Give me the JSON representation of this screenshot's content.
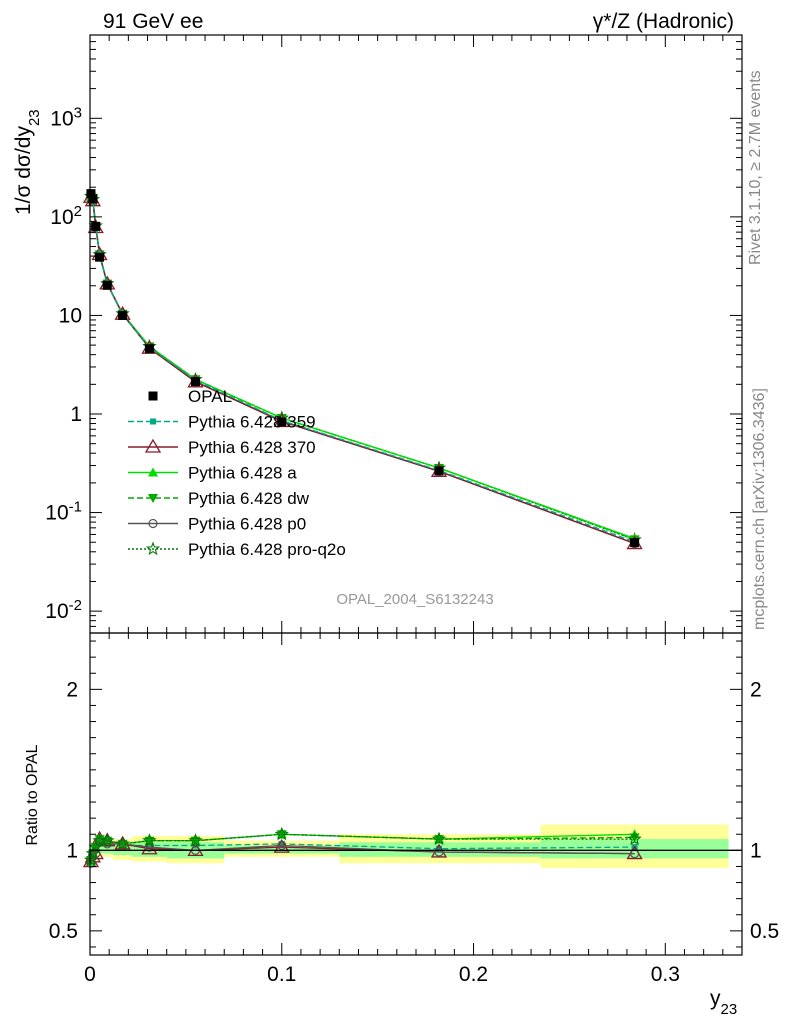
{
  "header": {
    "left_title": "91 GeV ee",
    "right_title": "γ*/Z (Hadronic)"
  },
  "side_text": {
    "rivet": "Rivet 3.1.10, ≥ 2.7M events",
    "mcplots": "mcplots.cern.ch [arXiv:1306.3436]"
  },
  "watermark": "OPAL_2004_S6132243",
  "chart_data": [
    {
      "type": "line",
      "panel": "main",
      "ylabel": "1/σ dσ/dy_23",
      "yscale": "log",
      "ylim": [
        0.006,
        7000
      ],
      "xlim": [
        0,
        0.34
      ],
      "y_ticks": [
        "10^-2",
        "10^-1",
        "1",
        "10",
        "10^2",
        "10^3"
      ],
      "grid": false,
      "legend_placement": "middle-left",
      "x": [
        0.0005,
        0.0015,
        0.003,
        0.005,
        0.009,
        0.017,
        0.031,
        0.055,
        0.1,
        0.182,
        0.284
      ],
      "series": [
        {
          "name": "OPAL",
          "color": "#000000",
          "marker": "square",
          "line": "none",
          "values": [
            172,
            152,
            80,
            39,
            20.2,
            10.0,
            4.6,
            2.13,
            0.83,
            0.265,
            0.0495
          ]
        },
        {
          "name": "Pythia 6.428 359",
          "color": "#00aa88",
          "marker": "small-square",
          "line": "dashed",
          "values": [
            165,
            150,
            81,
            41,
            20.8,
            10.2,
            4.75,
            2.2,
            0.86,
            0.268,
            0.0505
          ]
        },
        {
          "name": "Pythia 6.428 370",
          "color": "#8b1a2b",
          "marker": "open-triangle",
          "line": "solid",
          "values": [
            158,
            146,
            78,
            41.5,
            20.9,
            10.3,
            4.65,
            2.12,
            0.84,
            0.262,
            0.0485
          ]
        },
        {
          "name": "Pythia 6.428 a",
          "color": "#00dd00",
          "marker": "triangle",
          "line": "solid",
          "values": [
            160,
            149,
            81,
            41.8,
            21.0,
            10.4,
            4.85,
            2.24,
            0.91,
            0.283,
            0.0545
          ]
        },
        {
          "name": "Pythia 6.428 dw",
          "color": "#00aa00",
          "marker": "down-triangle",
          "line": "dashed",
          "values": [
            161,
            149,
            81,
            41.6,
            21.0,
            10.4,
            4.85,
            2.25,
            0.91,
            0.283,
            0.0535
          ]
        },
        {
          "name": "Pythia 6.428 p0",
          "color": "#555555",
          "marker": "open-circle",
          "line": "solid",
          "values": [
            157,
            145,
            78,
            40.8,
            20.8,
            10.3,
            4.7,
            2.13,
            0.85,
            0.263,
            0.0485
          ]
        },
        {
          "name": "Pythia 6.428 pro-q2o",
          "color": "#007700",
          "marker": "open-star",
          "line": "dotted",
          "values": [
            162,
            150,
            81,
            41.5,
            21.0,
            10.4,
            4.85,
            2.24,
            0.91,
            0.283,
            0.053
          ]
        }
      ]
    },
    {
      "type": "line",
      "panel": "ratio",
      "ylabel": "Ratio to OPAL",
      "xlabel": "y_23",
      "ylim": [
        0.35,
        2.35
      ],
      "xlim": [
        0,
        0.34
      ],
      "y_ticks": [
        "0.5",
        "1",
        "2"
      ],
      "x_ticks": [
        "0",
        "0.1",
        "0.2",
        "0.3"
      ],
      "grid": false,
      "uncertainty_bands": {
        "edges": [
          0,
          0.001,
          0.002,
          0.004,
          0.006,
          0.012,
          0.022,
          0.04,
          0.07,
          0.13,
          0.235,
          0.333
        ],
        "inner_lo": [
          0.97,
          0.97,
          0.97,
          0.98,
          0.98,
          0.97,
          0.96,
          0.95,
          0.98,
          0.96,
          0.95
        ],
        "inner_hi": [
          1.03,
          1.03,
          1.03,
          1.03,
          1.03,
          1.04,
          1.05,
          1.05,
          1.03,
          1.05,
          1.07
        ],
        "outer_lo": [
          0.95,
          0.95,
          0.95,
          0.96,
          0.96,
          0.94,
          0.93,
          0.92,
          0.96,
          0.92,
          0.89
        ],
        "outer_hi": [
          1.05,
          1.05,
          1.05,
          1.05,
          1.05,
          1.07,
          1.09,
          1.09,
          1.06,
          1.1,
          1.16
        ],
        "inner_color": "#99ff99",
        "outer_color": "#ffff99"
      },
      "x": [
        0.0005,
        0.0015,
        0.003,
        0.005,
        0.009,
        0.017,
        0.031,
        0.055,
        0.1,
        0.182,
        0.284
      ],
      "series": [
        {
          "name": "Pythia 6.428 359",
          "color": "#00aa88",
          "values": [
            0.96,
            0.99,
            1.02,
            1.05,
            1.04,
            1.03,
            1.03,
            1.03,
            1.04,
            1.01,
            1.02
          ]
        },
        {
          "name": "Pythia 6.428 370",
          "color": "#8b1a2b",
          "values": [
            0.93,
            0.96,
            0.98,
            1.07,
            1.06,
            1.04,
            1.01,
            1.0,
            1.02,
            0.99,
            0.98
          ]
        },
        {
          "name": "Pythia 6.428 a",
          "color": "#00dd00",
          "values": [
            0.93,
            0.98,
            1.02,
            1.07,
            1.06,
            1.04,
            1.06,
            1.06,
            1.1,
            1.07,
            1.1
          ]
        },
        {
          "name": "Pythia 6.428 dw",
          "color": "#00aa00",
          "values": [
            0.94,
            0.98,
            1.02,
            1.07,
            1.06,
            1.04,
            1.06,
            1.06,
            1.1,
            1.07,
            1.08
          ]
        },
        {
          "name": "Pythia 6.428 p0",
          "color": "#555555",
          "values": [
            0.92,
            0.96,
            0.98,
            1.05,
            1.04,
            1.04,
            1.02,
            1.0,
            1.03,
            0.99,
            0.98
          ]
        },
        {
          "name": "Pythia 6.428 pro-q2o",
          "color": "#007700",
          "values": [
            0.94,
            0.98,
            1.02,
            1.06,
            1.06,
            1.04,
            1.06,
            1.06,
            1.1,
            1.07,
            1.07
          ]
        },
        {
          "name": "OPAL",
          "color": "#000000",
          "values": [
            1,
            1,
            1,
            1,
            1,
            1,
            1,
            1,
            1,
            1,
            1
          ]
        }
      ]
    }
  ]
}
